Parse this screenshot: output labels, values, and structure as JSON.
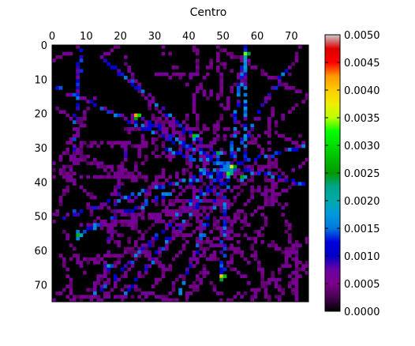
{
  "chart_data": {
    "type": "heatmap",
    "title": "Centro",
    "xlabel": "",
    "ylabel": "",
    "x_ticks": [
      "0",
      "10",
      "20",
      "30",
      "40",
      "50",
      "60",
      "70"
    ],
    "y_ticks": [
      "0",
      "10",
      "20",
      "30",
      "40",
      "50",
      "60",
      "70"
    ],
    "xlim": [
      0,
      75
    ],
    "ylim": [
      75,
      0
    ],
    "grid": false,
    "colormap": "nipy_spectral",
    "colorbar": {
      "range": [
        0,
        0.005
      ],
      "ticks": [
        "0.0000",
        "0.0005",
        "0.0010",
        "0.0015",
        "0.0020",
        "0.0025",
        "0.0030",
        "0.0035",
        "0.0040",
        "0.0045",
        "0.0050"
      ]
    },
    "grid_size": [
      75,
      75
    ],
    "cells_note": "Sparse street-network density values; approximate readings of the brightest cells",
    "hotspots": [
      {
        "col": 56,
        "row": 2,
        "value": 0.0034
      },
      {
        "col": 24,
        "row": 20,
        "value": 0.0042
      },
      {
        "col": 52,
        "row": 35,
        "value": 0.0036
      },
      {
        "col": 51,
        "row": 37,
        "value": 0.0032
      },
      {
        "col": 48,
        "row": 31,
        "value": 0.0024
      },
      {
        "col": 55,
        "row": 38,
        "value": 0.0026
      },
      {
        "col": 41,
        "row": 26,
        "value": 0.0028
      },
      {
        "col": 49,
        "row": 67,
        "value": 0.004
      },
      {
        "col": 7,
        "row": 55,
        "value": 0.0027
      },
      {
        "col": 16,
        "row": 64,
        "value": 0.002
      },
      {
        "col": 43,
        "row": 36,
        "value": 0.0021
      }
    ]
  }
}
